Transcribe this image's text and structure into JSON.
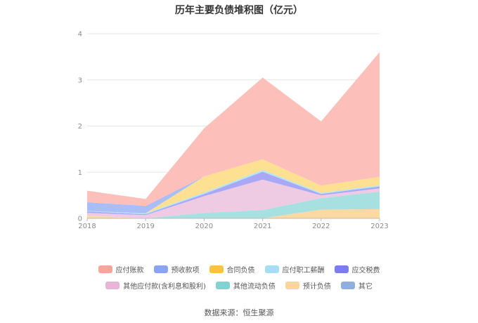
{
  "chart_data": {
    "type": "area",
    "stacked": true,
    "title": "历年主要负债堆积图（亿元）",
    "categories": [
      "2018",
      "2019",
      "2020",
      "2021",
      "2022",
      "2023"
    ],
    "y_ticks": [
      "0",
      "1",
      "2",
      "3",
      "4"
    ],
    "ylim": [
      0,
      4
    ],
    "grid": true,
    "legend_position": "bottom",
    "series": [
      {
        "name": "其它",
        "color": "#8eb0dc",
        "values": [
          0,
          0,
          0,
          0,
          0,
          0
        ]
      },
      {
        "name": "预计负债",
        "color": "#fcd9a1",
        "values": [
          0.06,
          0.0,
          0.0,
          0.0,
          0.19,
          0.2
        ]
      },
      {
        "name": "其他流动负债",
        "color": "#a6e0e0",
        "values": [
          0.0,
          0.0,
          0.12,
          0.18,
          0.25,
          0.38
        ]
      },
      {
        "name": "其他应付款(含利息和股利)",
        "color": "#eecbe3",
        "values": [
          0.06,
          0.07,
          0.36,
          0.66,
          0.06,
          0.07
        ]
      },
      {
        "name": "应交税费",
        "color": "#a9a8f4",
        "values": [
          0.03,
          0.02,
          0.05,
          0.17,
          0.03,
          0.04
        ]
      },
      {
        "name": "应付职工薪酬",
        "color": "#b5e4f8",
        "values": [
          0.01,
          0.02,
          0.03,
          0.04,
          0.02,
          0.03
        ]
      },
      {
        "name": "合同负债",
        "color": "#fde092",
        "values": [
          0.0,
          0.0,
          0.35,
          0.23,
          0.16,
          0.18
        ]
      },
      {
        "name": "预收款项",
        "color": "#a9bdf7",
        "values": [
          0.19,
          0.16,
          0.0,
          0.0,
          0.0,
          0.0
        ]
      },
      {
        "name": "应付账款",
        "color": "#fdbfb9",
        "values": [
          0.25,
          0.15,
          1.04,
          1.77,
          1.39,
          2.7
        ]
      }
    ]
  },
  "legend": {
    "row1": [
      {
        "name": "应付账款",
        "color": "#f8a39c"
      },
      {
        "name": "预收款项",
        "color": "#8aa3f2"
      },
      {
        "name": "合同负债",
        "color": "#fcc240"
      },
      {
        "name": "应付职工薪酬",
        "color": "#a4ddf7"
      },
      {
        "name": "应交税费",
        "color": "#7d7cef"
      }
    ],
    "row2": [
      {
        "name": "其他应付款(含利息和股利)",
        "color": "#e8b5d9"
      },
      {
        "name": "其他流动负债",
        "color": "#80d2d3"
      },
      {
        "name": "预计负债",
        "color": "#fcd59a"
      },
      {
        "name": "其它",
        "color": "#8eb0dc"
      }
    ]
  },
  "source": "数据来源：恒生聚源"
}
